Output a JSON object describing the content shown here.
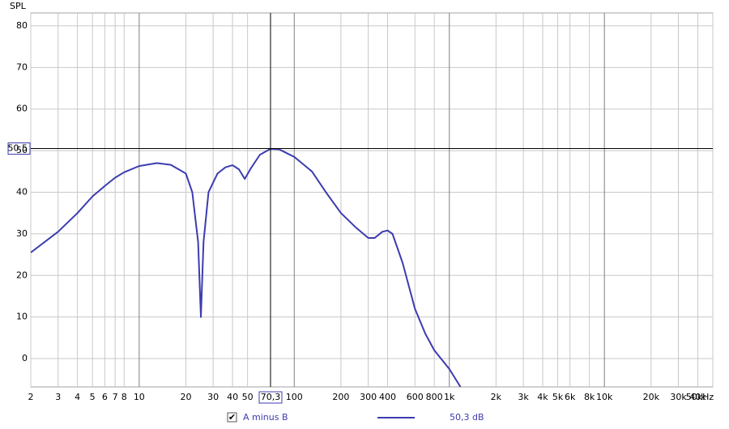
{
  "chart_data": {
    "type": "line",
    "y_label": "SPL",
    "log_x": true,
    "grid": true,
    "color": "#3c3cb0",
    "xlim": [
      2,
      50000
    ],
    "ylim": [
      -6.8,
      83.1
    ],
    "xticks": [
      2,
      3,
      4,
      5,
      6,
      7,
      8,
      10,
      20,
      30,
      40,
      50,
      100,
      200,
      300,
      400,
      600,
      800,
      {
        "value": 1000,
        "label": "1k"
      },
      {
        "value": 2000,
        "label": "2k"
      },
      {
        "value": 3000,
        "label": "3k"
      },
      {
        "value": 4000,
        "label": "4k"
      },
      {
        "value": 5000,
        "label": "5k"
      },
      {
        "value": 6000,
        "label": "6k"
      },
      {
        "value": 8000,
        "label": "8k"
      },
      {
        "value": 10000,
        "label": "10k"
      },
      {
        "value": 20000,
        "label": "20k"
      },
      {
        "value": 30000,
        "label": "30k"
      },
      {
        "value": 40000,
        "label": "40k"
      },
      {
        "value": 50000,
        "label": "50kHz"
      }
    ],
    "yticks": [
      0,
      10,
      20,
      30,
      40,
      50,
      60,
      70,
      80
    ],
    "cursor": {
      "x": 70.3,
      "x_label": "70,3",
      "y": 50.5,
      "y_label": "50,5"
    },
    "series_name": "A minus B",
    "legend_checked": true,
    "legend_value": "50,3 dB",
    "x": [
      2,
      3,
      4,
      5,
      6,
      7,
      8,
      10,
      13,
      16,
      20,
      22,
      24,
      25,
      26,
      28,
      32,
      36,
      40,
      44,
      48,
      52,
      60,
      70,
      80,
      100,
      130,
      160,
      200,
      250,
      300,
      330,
      370,
      400,
      430,
      500,
      600,
      700,
      800,
      1000,
      1180
    ],
    "values": [
      25.5,
      30.5,
      35,
      39,
      41.5,
      43.5,
      44.8,
      46.3,
      47,
      46.6,
      44.5,
      40,
      28,
      10,
      28,
      40,
      44.5,
      46,
      46.5,
      45.5,
      43.2,
      45.5,
      49,
      50.4,
      50.3,
      48.5,
      45,
      40,
      35,
      31.5,
      29,
      29,
      30.5,
      30.8,
      30,
      23,
      12,
      6,
      2,
      -2.5,
      -6.8
    ]
  }
}
